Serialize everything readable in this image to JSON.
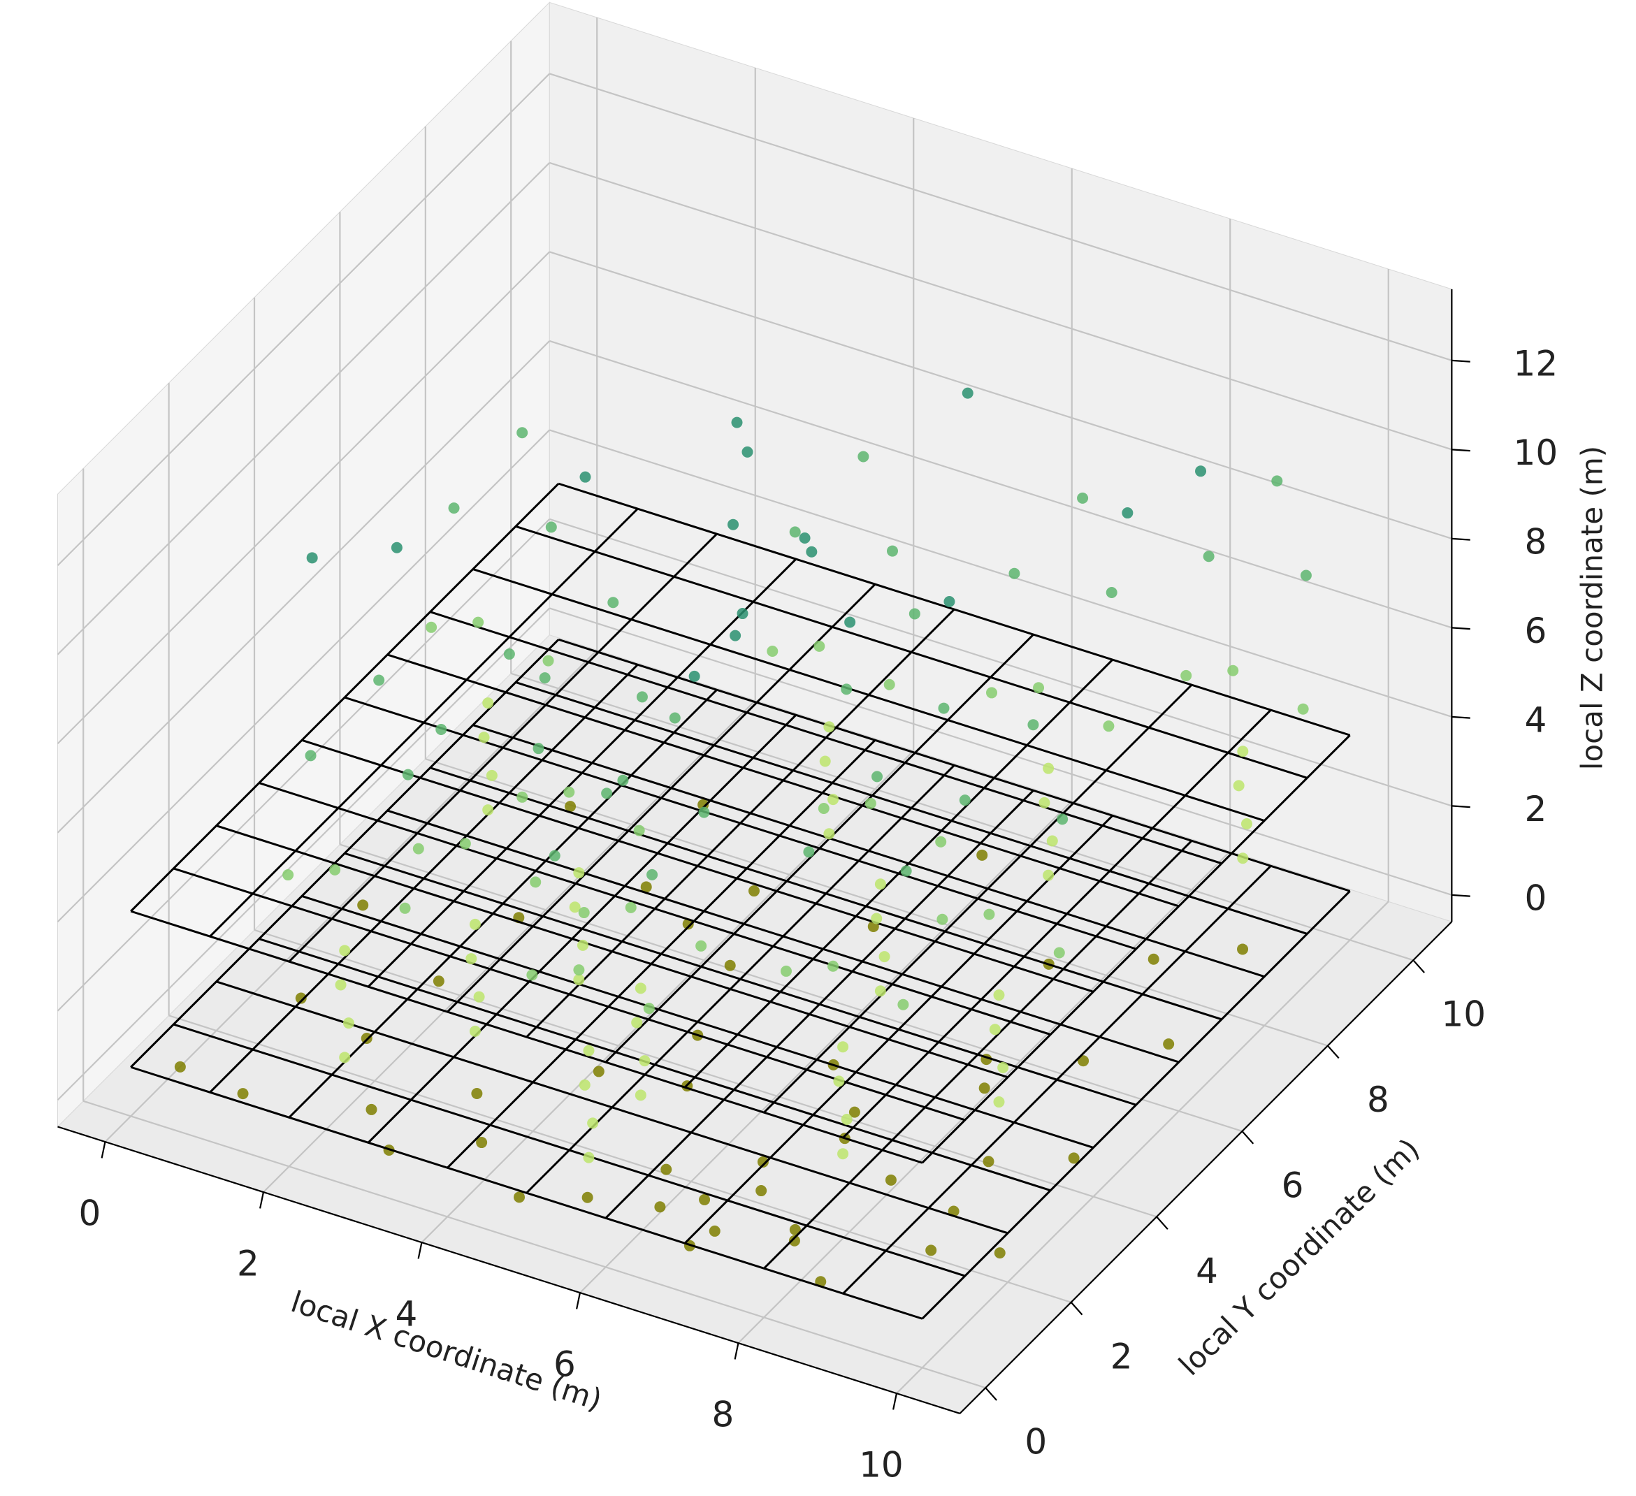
{
  "chart_data": {
    "type": "scatter3d",
    "x_label": "local X coordinate (m)",
    "y_label": "local Y coordinate (m)",
    "z_label": "local Z coordinate (m)",
    "xlim": [
      -0.6,
      10.8
    ],
    "ylim": [
      -0.6,
      10.9
    ],
    "zlim": [
      -0.6,
      13.6
    ],
    "xticks": [
      0,
      2,
      4,
      6,
      8,
      10
    ],
    "yticks": [
      0,
      2,
      4,
      6,
      8,
      10
    ],
    "zticks": [
      0,
      2,
      4,
      6,
      8,
      10,
      12
    ],
    "grid": true,
    "plane_z": [
      0.5,
      4
    ],
    "plane_grid": [
      0,
      1,
      2,
      3,
      4,
      5,
      6,
      7,
      8,
      9,
      10
    ],
    "plane_color": "#000000",
    "series": [
      {
        "color": "#7f7f00",
        "x": [
          0.3,
          1.2,
          2.5,
          3.1,
          4.0,
          4.8,
          5.5,
          6.2,
          7.0,
          7.8,
          8.5,
          9.3,
          9.9,
          0.8,
          1.9,
          3.4,
          4.4,
          5.9,
          6.8,
          7.4,
          8.2,
          9.0,
          9.7,
          0.5,
          2.2,
          3.8,
          5.0,
          6.5,
          7.2,
          8.0,
          8.9,
          9.6,
          1.5,
          2.8,
          4.2,
          5.6,
          6.0,
          7.6,
          8.6,
          9.4,
          6.6,
          7.1,
          5.3,
          4.6,
          8.3,
          9.1,
          2.0,
          3.0,
          6.9,
          7.9
        ],
        "y": [
          0.6,
          0.4,
          1.0,
          0.3,
          0.8,
          0.2,
          0.5,
          0.9,
          0.7,
          1.1,
          0.4,
          1.5,
          2.0,
          2.5,
          2.0,
          1.8,
          2.8,
          1.6,
          2.2,
          3.0,
          2.6,
          3.4,
          4.1,
          4.5,
          5.0,
          6.0,
          4.0,
          4.4,
          3.6,
          5.2,
          5.8,
          6.5,
          7.5,
          8.2,
          6.8,
          7.0,
          8.8,
          7.4,
          8.0,
          8.6,
          1.2,
          1.6,
          3.2,
          5.5,
          4.6,
          2.4,
          3.5,
          6.5,
          0.3,
          0.9
        ],
        "z": [
          0.1,
          0.2,
          0.0,
          0.1,
          0.3,
          0.1,
          0.2,
          0.0,
          0.1,
          0.2,
          0.1,
          0.2,
          0.0,
          0.1,
          0.3,
          0.1,
          0.2,
          0.0,
          0.1,
          0.2,
          0.1,
          0.2,
          0.0,
          0.1,
          0.3,
          0.1,
          0.2,
          0.0,
          0.1,
          0.2,
          0.1,
          0.2,
          0.0,
          0.1,
          0.3,
          0.1,
          0.2,
          0.0,
          0.1,
          0.2,
          0.1,
          0.2,
          0.0,
          0.1,
          0.3,
          0.1,
          0.2,
          0.0,
          0.1,
          0.2
        ]
      },
      {
        "color": "#bde56c",
        "x": [
          2.0,
          2.05,
          1.95,
          2.0,
          5.3,
          5.35,
          5.25,
          5.3,
          5.2,
          5.25,
          5.15,
          5.2,
          7.7,
          7.75,
          7.65,
          7.7,
          8.7,
          8.75,
          8.65,
          8.7,
          3.5,
          3.55,
          3.45,
          3.5,
          6.5,
          6.55,
          6.45,
          6.5,
          8.7,
          8.75,
          8.65,
          8.7,
          1.0,
          1.05,
          0.95,
          1.0,
          4.5,
          4.55,
          4.45,
          4.5,
          7.0,
          7.05,
          6.95,
          7.0,
          3.0,
          3.05,
          2.95,
          3.0
        ],
        "y": [
          1.3,
          1.3,
          1.3,
          1.3,
          0.9,
          0.9,
          0.9,
          0.9,
          2.3,
          2.3,
          2.3,
          2.3,
          2.4,
          2.4,
          2.4,
          2.4,
          4.2,
          4.2,
          4.2,
          4.2,
          4.0,
          4.0,
          4.0,
          4.0,
          5.5,
          5.5,
          5.5,
          5.5,
          9.9,
          9.9,
          9.9,
          9.9,
          6.5,
          6.5,
          6.5,
          6.5,
          8.0,
          8.0,
          8.0,
          8.0,
          8.5,
          8.5,
          8.5,
          8.5,
          2.5,
          2.5,
          2.5,
          2.5
        ],
        "z": [
          0.6,
          1.4,
          2.2,
          3.0,
          0.6,
          1.4,
          2.2,
          3.0,
          0.6,
          1.4,
          2.2,
          3.0,
          0.6,
          1.4,
          2.2,
          3.0,
          0.6,
          1.4,
          2.2,
          3.0,
          0.6,
          1.4,
          2.2,
          3.0,
          0.6,
          1.4,
          2.2,
          3.0,
          0.6,
          1.4,
          2.2,
          3.0,
          0.6,
          1.4,
          2.2,
          3.0,
          0.6,
          1.4,
          2.2,
          3.0,
          0.6,
          1.4,
          2.2,
          3.0,
          0.6,
          1.4,
          2.2,
          3.0
        ]
      },
      {
        "color": "#86cc6e",
        "x": [
          2.6,
          1.5,
          2.2,
          5.9,
          4.8,
          5.5,
          5.8,
          4.7,
          5.4,
          8.3,
          7.2,
          7.9,
          9.3,
          8.2,
          8.9,
          4.1,
          3.0,
          3.7,
          7.1,
          6.0,
          6.7,
          9.3,
          8.2,
          8.9,
          1.6,
          0.5,
          1.2,
          5.1,
          4.0,
          4.7,
          7.6,
          6.5,
          7.2,
          3.6,
          2.5,
          3.2
        ],
        "y": [
          1.6,
          0.9,
          0.7,
          1.2,
          0.5,
          0.3,
          2.6,
          1.9,
          1.7,
          2.7,
          2.0,
          1.8,
          4.5,
          3.8,
          3.6,
          4.3,
          3.6,
          3.4,
          5.8,
          5.1,
          4.9,
          10.2,
          9.5,
          9.3,
          6.8,
          6.1,
          5.9,
          8.3,
          7.6,
          7.4,
          8.8,
          8.1,
          7.9,
          2.8,
          2.1,
          1.9
        ],
        "z": [
          4.0,
          4.8,
          5.5,
          4.0,
          4.8,
          5.5,
          4.0,
          4.8,
          5.5,
          4.0,
          4.8,
          5.5,
          4.0,
          4.8,
          5.5,
          4.0,
          4.8,
          5.5,
          4.0,
          4.8,
          5.5,
          4.0,
          4.8,
          5.5,
          4.0,
          4.8,
          5.5,
          4.0,
          4.8,
          5.5,
          4.0,
          4.8,
          5.5,
          4.0,
          4.8,
          5.5
        ]
      },
      {
        "color": "#5db56f",
        "x": [
          1.3,
          2.8,
          2.0,
          4.6,
          6.1,
          5.3,
          4.5,
          6.0,
          5.2,
          7.0,
          8.5,
          7.7,
          8.0,
          9.5,
          8.7,
          2.8,
          4.3,
          3.5,
          5.8,
          7.3,
          6.5,
          8.0,
          9.5,
          8.7,
          0.3,
          1.8,
          1.0,
          3.8,
          5.3,
          4.5,
          6.3,
          7.8,
          7.0,
          2.3,
          3.8,
          3.0
        ],
        "y": [
          1.8,
          1.3,
          2.1,
          1.4,
          0.9,
          1.7,
          2.8,
          2.3,
          3.1,
          2.9,
          2.4,
          3.2,
          4.7,
          4.2,
          5.0,
          4.5,
          4.0,
          4.8,
          6.0,
          5.5,
          6.3,
          10.4,
          9.9,
          10.7,
          7.0,
          6.5,
          7.3,
          8.5,
          8.0,
          8.8,
          9.0,
          8.5,
          9.3,
          3.0,
          2.5,
          3.3
        ],
        "z": [
          6.5,
          7.4,
          8.3,
          6.5,
          7.4,
          8.3,
          6.5,
          7.4,
          8.3,
          6.5,
          7.4,
          8.3,
          6.5,
          7.4,
          8.3,
          6.5,
          7.4,
          8.3,
          6.5,
          7.4,
          8.3,
          6.5,
          7.4,
          8.3,
          6.5,
          7.4,
          8.3,
          6.5,
          7.4,
          8.3,
          6.5,
          7.4,
          8.3,
          6.5,
          7.4,
          8.3
        ]
      },
      {
        "color": "#2a9170",
        "x": [
          5.5,
          5.8,
          6.0,
          6.3,
          5.9,
          6.6,
          7.1,
          4.8,
          4.2,
          3.9,
          8.0,
          8.6,
          2.5,
          0.4,
          1.2,
          6.9
        ],
        "y": [
          3.0,
          3.4,
          3.2,
          4.1,
          5.0,
          4.6,
          6.0,
          5.2,
          6.4,
          7.2,
          8.5,
          9.1,
          6.0,
          3.5,
          4.0,
          6.8
        ],
        "z": [
          9.5,
          10.2,
          11.0,
          12.0,
          10.6,
          9.8,
          9.2,
          10.4,
          11.2,
          9.6,
          9.3,
          10.0,
          9.4,
          8.8,
          9.0,
          13.0
        ]
      }
    ]
  }
}
